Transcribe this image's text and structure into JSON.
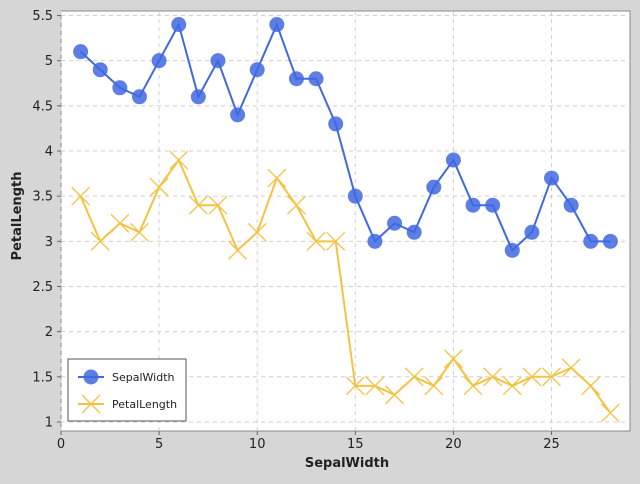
{
  "chart_data": {
    "type": "line",
    "title": "",
    "xlabel": "SepalWidth",
    "ylabel": "PetalLength",
    "xlim": [
      0,
      29
    ],
    "ylim": [
      0.9,
      5.55
    ],
    "xticks": [
      0,
      5,
      10,
      15,
      20,
      25
    ],
    "xtick_labels": [
      "0",
      "5",
      "10",
      "15",
      "20",
      "25"
    ],
    "yticks": [
      1,
      1.5,
      2,
      2.5,
      3,
      3.5,
      4,
      4.5,
      5,
      5.5
    ],
    "ytick_labels": [
      "1",
      "1.5",
      "2",
      "2.5",
      "3",
      "3.5",
      "4",
      "4.5",
      "5",
      "5.5"
    ],
    "grid": true,
    "legend_position": "bottom-left",
    "x": [
      1,
      2,
      3,
      4,
      5,
      6,
      7,
      8,
      9,
      10,
      11,
      12,
      13,
      14,
      15,
      16,
      17,
      18,
      19,
      20,
      21,
      22,
      23,
      24,
      25,
      26,
      27,
      28
    ],
    "series": [
      {
        "name": "SepalWidth",
        "marker": "circle",
        "color": "#4169e1",
        "values": [
          5.1,
          4.9,
          4.7,
          4.6,
          5.0,
          5.4,
          4.6,
          5.0,
          4.4,
          4.9,
          5.4,
          4.8,
          4.8,
          4.3,
          3.5,
          3.0,
          3.2,
          3.1,
          3.6,
          3.9,
          3.4,
          3.4,
          2.9,
          3.1,
          3.7,
          3.4,
          3.0,
          3.0
        ]
      },
      {
        "name": "PetalLength",
        "marker": "cross",
        "color": "#f5c242",
        "values": [
          3.5,
          3.0,
          3.2,
          3.1,
          3.6,
          3.9,
          3.4,
          3.4,
          2.9,
          3.1,
          3.7,
          3.4,
          3.0,
          3.0,
          1.4,
          1.4,
          1.3,
          1.5,
          1.4,
          1.7,
          1.4,
          1.5,
          1.4,
          1.5,
          1.5,
          1.6,
          1.4,
          1.1
        ]
      }
    ]
  }
}
